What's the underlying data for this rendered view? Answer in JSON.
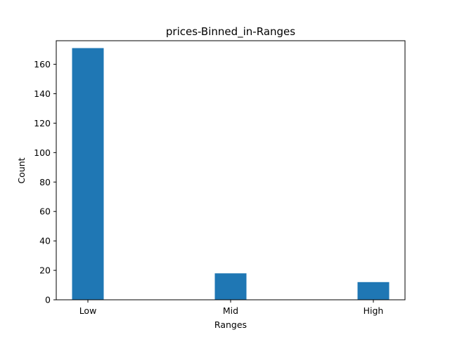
{
  "chart_data": {
    "type": "bar",
    "title": "prices-Binned_in-Ranges",
    "xlabel": "Ranges",
    "ylabel": "Count",
    "categories": [
      "Low",
      "Mid",
      "High"
    ],
    "values": [
      171,
      18,
      12
    ],
    "ylim": [
      0,
      176
    ],
    "yticks": [
      0,
      20,
      40,
      60,
      80,
      100,
      120,
      140,
      160
    ],
    "grid": false,
    "bar_color": "#1f77b4"
  }
}
